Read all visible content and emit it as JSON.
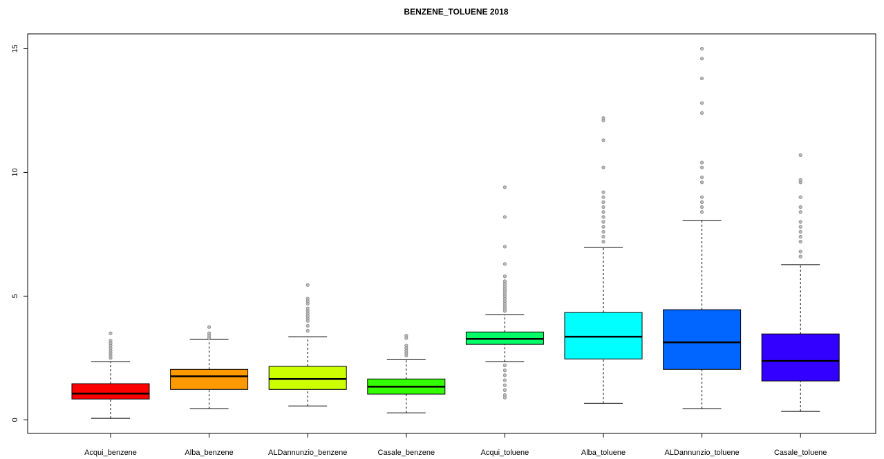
{
  "chart_data": {
    "type": "boxplot",
    "title": "BENZENE_TOLUENE 2018",
    "categories": [
      "Acqui_benzene",
      "Alba_benzene",
      "ALDannunzio_benzene",
      "Casale_benzene",
      "Acqui_toluene",
      "Alba_toluene",
      "ALDannunzio_toluene",
      "Casale_toluene"
    ],
    "boxes": [
      {
        "color": "#ff0000",
        "whisker_low": 0.06,
        "q1": 0.84,
        "median": 1.06,
        "q3": 1.46,
        "whisker_high": 2.35,
        "outliers": [
          2.5,
          2.6,
          2.7,
          2.8,
          2.9,
          3.0,
          3.1,
          3.2,
          3.5
        ]
      },
      {
        "color": "#ff9900",
        "whisker_low": 0.45,
        "q1": 1.23,
        "median": 1.76,
        "q3": 2.04,
        "whisker_high": 3.25,
        "outliers": [
          3.3,
          3.4,
          3.5,
          3.75
        ]
      },
      {
        "color": "#ccff00",
        "whisker_low": 0.56,
        "q1": 1.23,
        "median": 1.65,
        "q3": 2.16,
        "whisker_high": 3.36,
        "outliers": [
          3.6,
          3.8,
          4.0,
          4.1,
          4.2,
          4.3,
          4.4,
          4.5,
          4.7,
          4.8,
          4.9,
          5.45
        ]
      },
      {
        "color": "#33ff00",
        "whisker_low": 0.28,
        "q1": 1.04,
        "median": 1.34,
        "q3": 1.65,
        "whisker_high": 2.43,
        "outliers": [
          2.6,
          2.7,
          2.8,
          2.9,
          3.0,
          3.3,
          3.4
        ]
      },
      {
        "color": "#00ff66",
        "whisker_low": 2.35,
        "q1": 3.05,
        "median": 3.27,
        "q3": 3.55,
        "whisker_high": 4.25,
        "outliers": [
          4.4,
          4.5,
          4.6,
          4.7,
          4.8,
          4.9,
          5.0,
          5.1,
          5.2,
          5.3,
          5.4,
          5.5,
          5.6,
          5.8,
          6.3,
          7.0,
          8.2,
          9.4,
          2.2,
          2.0,
          1.8,
          1.6,
          1.4,
          1.2,
          1.0,
          0.9
        ]
      },
      {
        "color": "#00ffff",
        "whisker_low": 0.67,
        "q1": 2.46,
        "median": 3.36,
        "q3": 4.34,
        "whisker_high": 6.97,
        "outliers": [
          7.2,
          7.4,
          7.6,
          7.8,
          8.0,
          8.2,
          8.4,
          8.6,
          8.8,
          9.0,
          9.2,
          10.2,
          11.3,
          12.1,
          12.2
        ]
      },
      {
        "color": "#0066ff",
        "whisker_low": 0.45,
        "q1": 2.04,
        "median": 3.13,
        "q3": 4.45,
        "whisker_high": 8.06,
        "outliers": [
          8.4,
          8.6,
          8.8,
          9.0,
          9.6,
          9.8,
          10.2,
          10.4,
          12.4,
          12.8,
          13.8,
          14.6,
          15.0
        ]
      },
      {
        "color": "#3300ff",
        "whisker_low": 0.34,
        "q1": 1.57,
        "median": 2.38,
        "q3": 3.47,
        "whisker_high": 6.27,
        "outliers": [
          6.6,
          6.8,
          7.2,
          7.4,
          7.6,
          7.8,
          8.0,
          8.4,
          8.6,
          9.0,
          9.6,
          9.7,
          10.7
        ]
      }
    ],
    "ylim": [
      -0.55,
      15.6
    ],
    "yticks": [
      0,
      5,
      10,
      15
    ]
  }
}
